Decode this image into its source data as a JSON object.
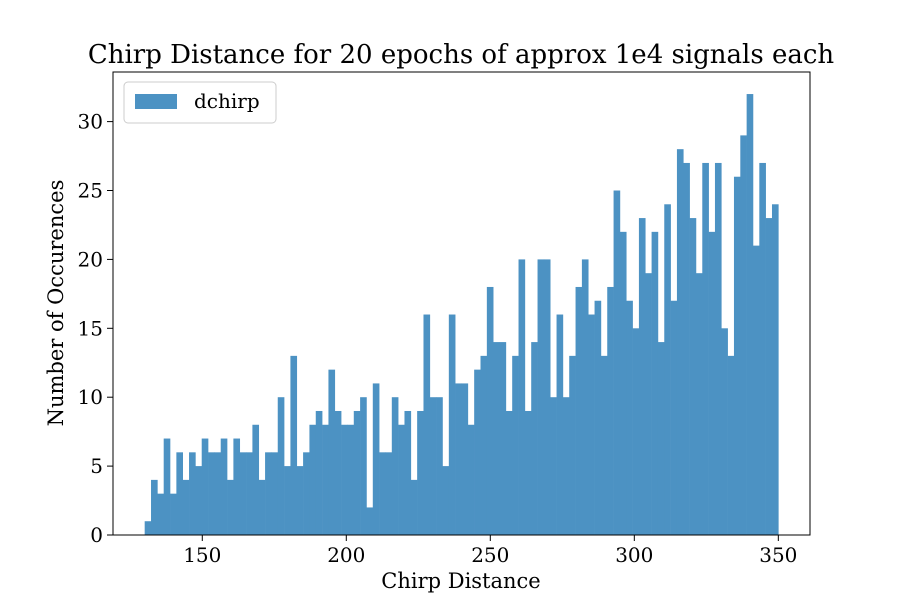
{
  "chart_data": {
    "type": "bar",
    "title": "Chirp Distance for 20 epochs of approx 1e4 signals each",
    "xlabel": "Chirp Distance",
    "ylabel": "Number of Occurences",
    "xlim": [
      119,
      361
    ],
    "ylim": [
      0,
      33.6
    ],
    "x_ticks": [
      150,
      200,
      250,
      300,
      350
    ],
    "y_ticks": [
      0,
      5,
      10,
      15,
      20,
      25,
      30
    ],
    "grid": false,
    "legend": {
      "position": "top-left",
      "entries": [
        "dchirp"
      ]
    },
    "bin_start": 130,
    "bin_end": 350,
    "bar_color": "#4c92c3",
    "series": [
      {
        "name": "dchirp",
        "values": [
          1,
          4,
          3,
          7,
          3,
          6,
          4,
          6,
          5,
          7,
          6,
          6,
          7,
          4,
          7,
          6,
          6,
          8,
          4,
          6,
          6,
          10,
          5,
          13,
          5,
          6,
          8,
          9,
          8,
          12,
          9,
          8,
          8,
          9,
          10,
          2,
          11,
          6,
          6,
          10,
          8,
          9,
          4,
          9,
          16,
          10,
          10,
          5,
          16,
          11,
          11,
          8,
          12,
          13,
          18,
          14,
          14,
          9,
          13,
          20,
          9,
          14,
          20,
          20,
          10,
          16,
          10,
          13,
          18,
          20,
          16,
          17,
          13,
          18,
          25,
          22,
          17,
          15,
          23,
          19,
          22,
          14,
          24,
          17,
          28,
          27,
          23,
          19,
          27,
          22,
          27,
          15,
          13,
          26,
          29,
          32,
          21,
          27,
          23,
          24
        ]
      }
    ]
  }
}
